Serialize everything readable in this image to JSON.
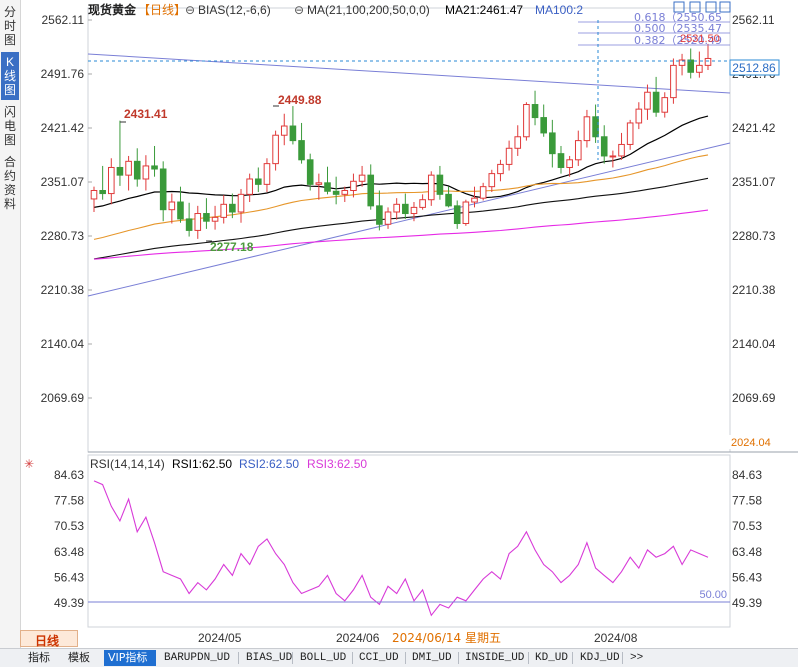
{
  "sidebar": {
    "tabs": [
      {
        "label": "分\n时\n图",
        "active": false
      },
      {
        "label": "K\n线\n图",
        "active": true
      },
      {
        "label": "闪\n电\n图",
        "active": false
      },
      {
        "label": "合\n约\n资\n料",
        "active": false
      }
    ]
  },
  "header": {
    "instrument": "现货黄金",
    "period": "【日线】",
    "bias_label": "BIAS(12,-6,6)",
    "ma_label": "MA(21,100,200,50,0,0)",
    "ma21_label": "MA21:2461.47",
    "ma100_label": "MA100:2"
  },
  "price_axis_labels": [
    "2562.11",
    "2491.76",
    "2421.42",
    "2351.07",
    "2280.73",
    "2210.38",
    "2140.04",
    "2069.69"
  ],
  "year_label": "2024.04",
  "current_price": "2512.86",
  "fib_labels": [
    "0.618（2550.65",
    "0.500（2535.47",
    "0.382（2520.49"
  ],
  "fib_extra": "2531.50",
  "annotations": [
    {
      "text": "2431.41",
      "color": "#c0392b"
    },
    {
      "text": "2449.88",
      "color": "#c0392b"
    },
    {
      "text": "2277.18",
      "color": "#4e9a3e"
    }
  ],
  "rsi": {
    "label": "RSI(14,14,14)",
    "rsi1": "RSI1:62.50",
    "rsi2": "RSI2:62.50",
    "rsi3": "RSI3:62.50",
    "axis_labels": [
      "84.63",
      "77.58",
      "70.53",
      "63.48",
      "56.43",
      "49.39"
    ],
    "level_label": "50.00"
  },
  "date_labels": [
    "2024/05",
    "2024/06",
    "2024/06/14 星期五",
    "2024/08"
  ],
  "bottom_tabs": [
    "指标",
    "模板",
    "VIP指标",
    "BARUPDN_UD",
    "BIAS_UD",
    "BOLL_UD",
    "CCI_UD",
    "DMI_UD",
    "INSIDE_UD",
    "KD_UD",
    "KDJ_UD",
    ">>"
  ],
  "period_tab": "日线",
  "colors": {
    "up": "#e03a3a",
    "down": "#3a9a3a",
    "ma21": "#000000",
    "ma50": "#e6962a",
    "ma200": "#e62ae6",
    "rsi": "#d83ad8",
    "trend": "#7a7fd6"
  },
  "chart_data": {
    "type": "candlestick",
    "ylim": [
      2020,
      2580
    ],
    "candles": [
      [
        2329,
        2345,
        2312,
        2340
      ],
      [
        2340,
        2372,
        2328,
        2336
      ],
      [
        2336,
        2382,
        2322,
        2370
      ],
      [
        2370,
        2431,
        2346,
        2360
      ],
      [
        2360,
        2385,
        2340,
        2378
      ],
      [
        2378,
        2395,
        2345,
        2355
      ],
      [
        2355,
        2386,
        2340,
        2372
      ],
      [
        2372,
        2398,
        2358,
        2368
      ],
      [
        2368,
        2378,
        2300,
        2315
      ],
      [
        2315,
        2336,
        2297,
        2325
      ],
      [
        2325,
        2345,
        2298,
        2303
      ],
      [
        2303,
        2324,
        2280,
        2288
      ],
      [
        2288,
        2320,
        2277,
        2310
      ],
      [
        2310,
        2330,
        2290,
        2300
      ],
      [
        2300,
        2320,
        2289,
        2305
      ],
      [
        2305,
        2334,
        2297,
        2322
      ],
      [
        2322,
        2336,
        2304,
        2312
      ],
      [
        2312,
        2342,
        2298,
        2335
      ],
      [
        2335,
        2362,
        2325,
        2355
      ],
      [
        2355,
        2370,
        2338,
        2348
      ],
      [
        2348,
        2382,
        2338,
        2375
      ],
      [
        2375,
        2418,
        2366,
        2412
      ],
      [
        2412,
        2440,
        2399,
        2424
      ],
      [
        2424,
        2450,
        2400,
        2405
      ],
      [
        2405,
        2428,
        2375,
        2380
      ],
      [
        2380,
        2388,
        2340,
        2348
      ],
      [
        2348,
        2362,
        2328,
        2350
      ],
      [
        2350,
        2371,
        2335,
        2339
      ],
      [
        2339,
        2358,
        2322,
        2335
      ],
      [
        2335,
        2345,
        2325,
        2340
      ],
      [
        2340,
        2362,
        2331,
        2352
      ],
      [
        2352,
        2372,
        2345,
        2360
      ],
      [
        2360,
        2374,
        2315,
        2320
      ],
      [
        2320,
        2340,
        2288,
        2296
      ],
      [
        2296,
        2318,
        2290,
        2312
      ],
      [
        2312,
        2330,
        2302,
        2322
      ],
      [
        2322,
        2336,
        2303,
        2310
      ],
      [
        2310,
        2325,
        2300,
        2318
      ],
      [
        2318,
        2335,
        2315,
        2328
      ],
      [
        2328,
        2365,
        2320,
        2360
      ],
      [
        2360,
        2372,
        2328,
        2335
      ],
      [
        2335,
        2345,
        2318,
        2320
      ],
      [
        2320,
        2327,
        2290,
        2297
      ],
      [
        2297,
        2328,
        2294,
        2325
      ],
      [
        2325,
        2345,
        2318,
        2330
      ],
      [
        2330,
        2350,
        2327,
        2345
      ],
      [
        2345,
        2367,
        2338,
        2362
      ],
      [
        2362,
        2380,
        2352,
        2374
      ],
      [
        2374,
        2405,
        2366,
        2395
      ],
      [
        2395,
        2425,
        2385,
        2410
      ],
      [
        2410,
        2455,
        2405,
        2452
      ],
      [
        2452,
        2470,
        2425,
        2435
      ],
      [
        2435,
        2452,
        2410,
        2415
      ],
      [
        2415,
        2432,
        2370,
        2388
      ],
      [
        2388,
        2398,
        2362,
        2370
      ],
      [
        2370,
        2385,
        2358,
        2380
      ],
      [
        2380,
        2418,
        2372,
        2405
      ],
      [
        2405,
        2445,
        2396,
        2436
      ],
      [
        2436,
        2452,
        2402,
        2410
      ],
      [
        2410,
        2425,
        2375,
        2385
      ],
      [
        2385,
        2392,
        2370,
        2385
      ],
      [
        2385,
        2415,
        2380,
        2400
      ],
      [
        2400,
        2432,
        2393,
        2428
      ],
      [
        2428,
        2455,
        2420,
        2446
      ],
      [
        2446,
        2478,
        2432,
        2468
      ],
      [
        2468,
        2488,
        2436,
        2442
      ],
      [
        2442,
        2468,
        2435,
        2461
      ],
      [
        2461,
        2512,
        2453,
        2503
      ],
      [
        2503,
        2518,
        2490,
        2510
      ],
      [
        2510,
        2525,
        2486,
        2494
      ],
      [
        2494,
        2521,
        2487,
        2503
      ],
      [
        2503,
        2531,
        2497,
        2512
      ]
    ],
    "rsi_values": [
      83,
      82,
      76,
      72,
      78,
      69,
      73,
      66,
      58,
      57,
      56,
      52,
      55,
      53,
      56,
      60,
      57,
      63,
      60,
      65,
      67,
      63,
      60,
      55,
      52,
      53,
      54,
      57,
      52,
      50,
      53,
      57,
      51,
      49,
      54,
      52,
      56,
      50,
      53,
      46,
      49,
      48,
      51,
      50,
      53,
      56,
      58,
      56,
      63,
      65,
      69,
      64,
      60,
      58,
      55,
      57,
      60,
      66,
      59,
      57,
      55,
      58,
      62,
      59,
      64,
      62,
      63,
      65,
      60,
      64,
      63,
      62
    ]
  }
}
